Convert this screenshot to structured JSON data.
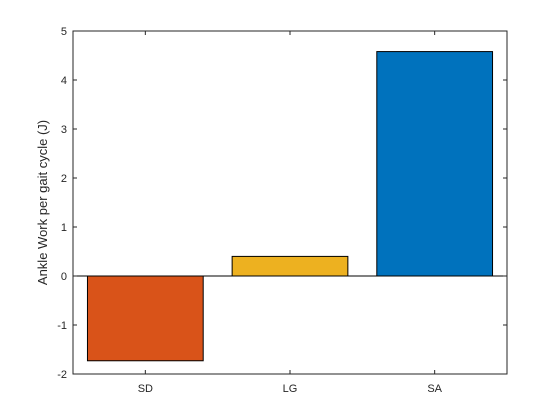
{
  "chart_data": {
    "type": "bar",
    "title": "",
    "xlabel": "",
    "ylabel": "Ankle Work per gait cycle (J)",
    "categories": [
      "SD",
      "LG",
      "SA"
    ],
    "values": [
      -1.73,
      0.4,
      4.58
    ],
    "colors": [
      "#D95319",
      "#EDB120",
      "#0072BD"
    ],
    "ylim": [
      -2,
      5
    ],
    "yticks": [
      -2,
      -1,
      0,
      1,
      2,
      3,
      4,
      5
    ],
    "ytick_labels": [
      "-2",
      "-1",
      "0",
      "1",
      "2",
      "3",
      "4",
      "5"
    ],
    "grid": false,
    "legend": "none"
  }
}
